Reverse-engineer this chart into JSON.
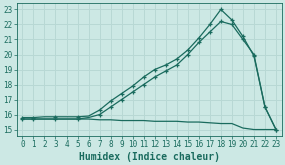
{
  "bg_color": "#cce8e4",
  "line_color": "#1a6b5e",
  "grid_color": "#b8d8d4",
  "xlabel": "Humidex (Indice chaleur)",
  "xlim": [
    -0.5,
    23.5
  ],
  "ylim": [
    14.6,
    23.4
  ],
  "xticks": [
    0,
    1,
    2,
    3,
    4,
    5,
    6,
    7,
    8,
    9,
    10,
    11,
    12,
    13,
    14,
    15,
    16,
    17,
    18,
    19,
    20,
    21,
    22,
    23
  ],
  "yticks": [
    15,
    16,
    17,
    18,
    19,
    20,
    21,
    22,
    23
  ],
  "line1_x": [
    0,
    1,
    2,
    3,
    4,
    5,
    6,
    7,
    8,
    9,
    10,
    11,
    12,
    13,
    14,
    15,
    16,
    17,
    18,
    19,
    20,
    21,
    22,
    23
  ],
  "line1_y": [
    15.8,
    15.8,
    15.85,
    15.85,
    15.85,
    15.85,
    15.9,
    16.3,
    16.9,
    17.4,
    17.9,
    18.5,
    19.0,
    19.3,
    19.7,
    20.3,
    21.1,
    22.0,
    23.0,
    22.3,
    21.2,
    19.9,
    16.5,
    15.0
  ],
  "line2_x": [
    0,
    1,
    2,
    3,
    4,
    5,
    6,
    7,
    8,
    9,
    10,
    11,
    12,
    13,
    14,
    15,
    16,
    17,
    18,
    19,
    20,
    21,
    22,
    23
  ],
  "line2_y": [
    15.7,
    15.7,
    15.7,
    15.7,
    15.7,
    15.7,
    15.8,
    16.0,
    16.5,
    17.0,
    17.5,
    18.0,
    18.5,
    18.9,
    19.3,
    20.0,
    20.8,
    21.5,
    22.2,
    22.0,
    21.0,
    20.0,
    16.5,
    15.0
  ],
  "line3_x": [
    0,
    1,
    2,
    3,
    4,
    5,
    6,
    7,
    8,
    9,
    10,
    11,
    12,
    13,
    14,
    15,
    16,
    17,
    18,
    19,
    20,
    21,
    22,
    23
  ],
  "line3_y": [
    15.7,
    15.7,
    15.7,
    15.7,
    15.7,
    15.7,
    15.7,
    15.65,
    15.65,
    15.6,
    15.6,
    15.6,
    15.55,
    15.55,
    15.55,
    15.5,
    15.5,
    15.45,
    15.4,
    15.4,
    15.1,
    15.0,
    15.0,
    15.0
  ],
  "marker1_x": [
    0,
    1,
    3,
    5,
    7,
    8,
    9,
    10,
    11,
    12,
    13,
    14,
    15,
    16,
    17,
    18,
    19,
    20,
    21,
    22,
    23
  ],
  "marker1_y": [
    15.8,
    15.8,
    15.85,
    15.85,
    16.3,
    16.9,
    17.4,
    17.9,
    18.5,
    19.0,
    19.3,
    19.7,
    20.3,
    21.1,
    22.0,
    23.0,
    22.3,
    21.2,
    19.9,
    16.5,
    15.0
  ],
  "marker2_x": [
    0,
    1,
    3,
    5,
    7,
    8,
    9,
    10,
    11,
    12,
    13,
    14,
    15,
    16,
    17,
    18,
    19,
    20,
    21,
    22,
    23
  ],
  "marker2_y": [
    15.7,
    15.7,
    15.7,
    15.7,
    16.0,
    16.5,
    17.0,
    17.5,
    18.0,
    18.5,
    18.9,
    19.3,
    20.0,
    20.8,
    21.5,
    22.2,
    22.0,
    21.0,
    20.0,
    16.5,
    15.0
  ]
}
